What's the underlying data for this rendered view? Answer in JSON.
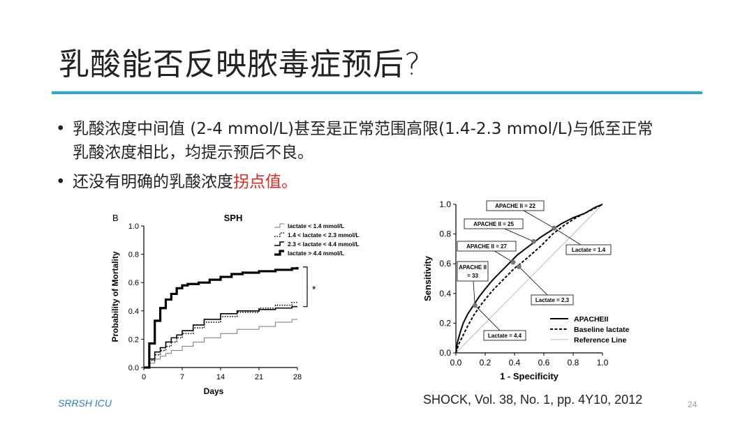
{
  "slide": {
    "title": "乳酸能否反映脓毒症预后?",
    "bullet1": "乳酸浓度中间值 (2-4 mmol/L)甚至是正常范围高限(1.4-2.3 mmol/L)与低至正常乳酸浓度相比，均提示预后不良。",
    "bullet2_prefix": "还没有明确的乳酸浓度",
    "bullet2_highlight": "拐点值。",
    "bullet_marker": "•",
    "footer_left": "SRRSH ICU",
    "citation": "SHOCK, Vol. 38, No. 1, pp. 4Y10, 2012",
    "page_number": "24",
    "highlight_color": "#e0281c",
    "accent_color": "#2aa7dd"
  },
  "chart_data": [
    {
      "type": "line",
      "panel_label": "B",
      "title": "SPH",
      "xlabel": "Days",
      "ylabel": "Probability of Mortality",
      "xlim": [
        0,
        28
      ],
      "ylim": [
        0,
        1.0
      ],
      "xticks": [
        0,
        7,
        14,
        21,
        28
      ],
      "yticks": [
        0.0,
        0.2,
        0.4,
        0.6,
        0.8,
        1.0
      ],
      "step": true,
      "legend_position": "top-right",
      "annotation": "*",
      "series": [
        {
          "name": "lactate < 1.4 mmol/L",
          "style": "thin-grey",
          "x": [
            0,
            1,
            2,
            3,
            4,
            5,
            7,
            9,
            11,
            14,
            17,
            21,
            24,
            27,
            28
          ],
          "y": [
            0,
            0.03,
            0.06,
            0.08,
            0.1,
            0.12,
            0.15,
            0.18,
            0.21,
            0.24,
            0.27,
            0.29,
            0.32,
            0.34,
            0.34
          ]
        },
        {
          "name": "1.4 < lactate < 2.3 mmol/L",
          "style": "dotted",
          "x": [
            0,
            1,
            2,
            3,
            4,
            5,
            6,
            7,
            9,
            11,
            14,
            17,
            21,
            24,
            27,
            28
          ],
          "y": [
            0,
            0.05,
            0.09,
            0.12,
            0.15,
            0.18,
            0.21,
            0.24,
            0.28,
            0.32,
            0.36,
            0.39,
            0.42,
            0.44,
            0.46,
            0.46
          ]
        },
        {
          "name": "2.3 < lactate < 4.4 mmol/L",
          "style": "medium-black",
          "x": [
            0,
            1,
            2,
            3,
            4,
            5,
            6,
            7,
            9,
            11,
            14,
            17,
            21,
            24,
            27,
            28
          ],
          "y": [
            0,
            0.06,
            0.11,
            0.14,
            0.18,
            0.21,
            0.23,
            0.26,
            0.3,
            0.34,
            0.38,
            0.4,
            0.41,
            0.42,
            0.43,
            0.43
          ]
        },
        {
          "name": "lactate > 4.4 mmol/L",
          "style": "thick-black",
          "x": [
            0,
            1,
            2,
            3,
            4,
            5,
            6,
            7,
            8,
            10,
            12,
            14,
            16,
            18,
            21,
            24,
            27,
            28
          ],
          "y": [
            0,
            0.17,
            0.33,
            0.42,
            0.48,
            0.52,
            0.56,
            0.58,
            0.59,
            0.6,
            0.62,
            0.64,
            0.66,
            0.67,
            0.68,
            0.69,
            0.7,
            0.71
          ]
        }
      ]
    },
    {
      "type": "line",
      "title": "",
      "xlabel": "1 - Specificity",
      "ylabel": "Sensitivity",
      "xlim": [
        0,
        1.0
      ],
      "ylim": [
        0,
        1.0
      ],
      "xticks": [
        0.0,
        0.2,
        0.4,
        0.6,
        0.8,
        1.0
      ],
      "yticks": [
        0.0,
        0.2,
        0.4,
        0.6,
        0.8,
        1.0
      ],
      "legend_position": "bottom-right",
      "series": [
        {
          "name": "APACHEII",
          "style": "solid-black",
          "x": [
            0,
            0.01,
            0.03,
            0.05,
            0.08,
            0.12,
            0.16,
            0.2,
            0.25,
            0.3,
            0.36,
            0.42,
            0.5,
            0.58,
            0.66,
            0.72,
            0.8,
            0.88,
            0.95,
            1.0
          ],
          "y": [
            0,
            0.07,
            0.14,
            0.2,
            0.26,
            0.32,
            0.38,
            0.43,
            0.49,
            0.54,
            0.6,
            0.66,
            0.72,
            0.78,
            0.83,
            0.87,
            0.91,
            0.94,
            0.98,
            1.0
          ]
        },
        {
          "name": "Baseline lactate",
          "style": "dashed-black",
          "x": [
            0,
            0.02,
            0.05,
            0.08,
            0.12,
            0.16,
            0.2,
            0.25,
            0.3,
            0.35,
            0.4,
            0.44,
            0.5,
            0.58,
            0.66,
            0.74,
            0.82,
            0.9,
            0.96,
            1.0
          ],
          "y": [
            0,
            0.06,
            0.12,
            0.18,
            0.25,
            0.31,
            0.36,
            0.42,
            0.47,
            0.52,
            0.57,
            0.6,
            0.65,
            0.72,
            0.8,
            0.86,
            0.91,
            0.95,
            0.98,
            1.0
          ]
        },
        {
          "name": "Reference Line",
          "style": "grey",
          "x": [
            0,
            1.0
          ],
          "y": [
            0,
            1.0
          ]
        }
      ],
      "annotations": [
        {
          "text": "APACHE II = 22",
          "point": [
            0.67,
            0.84
          ]
        },
        {
          "text": "APACHE II = 25",
          "point": [
            0.53,
            0.75
          ]
        },
        {
          "text": "APACHE II = 27",
          "point": [
            0.39,
            0.61
          ]
        },
        {
          "text": "APACHE II = 33",
          "point": [
            0.13,
            0.32
          ]
        },
        {
          "text": "Lactate = 1.4",
          "point": [
            0.67,
            0.84
          ]
        },
        {
          "text": "Lactate = 2.3",
          "point": [
            0.43,
            0.58
          ]
        },
        {
          "text": "Lactate = 4.4",
          "point": [
            0.13,
            0.32
          ]
        }
      ]
    }
  ]
}
